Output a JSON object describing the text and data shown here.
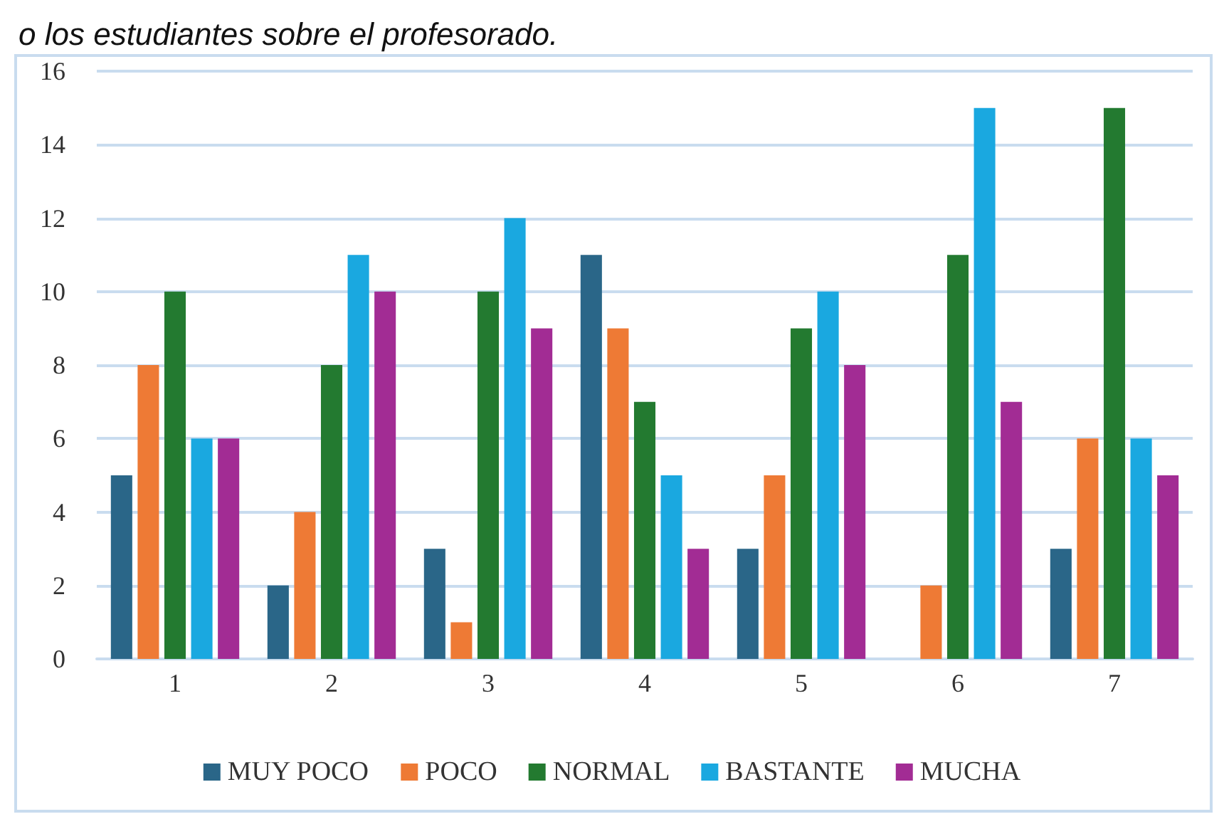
{
  "chart_data": {
    "type": "bar",
    "title": "o los estudiantes sobre el profesorado.",
    "categories": [
      "1",
      "2",
      "3",
      "4",
      "5",
      "6",
      "7"
    ],
    "series": [
      {
        "name": "MUY POCO",
        "color": "#2a6688",
        "values": [
          5,
          2,
          3,
          11,
          3,
          0,
          3
        ]
      },
      {
        "name": "POCO",
        "color": "#ee7a35",
        "values": [
          8,
          4,
          1,
          9,
          5,
          2,
          6
        ]
      },
      {
        "name": "NORMAL",
        "color": "#237a30",
        "values": [
          10,
          8,
          10,
          7,
          9,
          11,
          15
        ]
      },
      {
        "name": "BASTANTE",
        "color": "#1aa8e0",
        "values": [
          6,
          11,
          12,
          5,
          10,
          15,
          6
        ]
      },
      {
        "name": "MUCHA",
        "color": "#a22c94",
        "values": [
          6,
          10,
          9,
          3,
          8,
          7,
          5
        ]
      }
    ],
    "ylim": [
      0,
      16
    ],
    "yticks": [
      0,
      2,
      4,
      6,
      8,
      10,
      12,
      14,
      16
    ],
    "grid": "y",
    "legend": "bottom"
  }
}
